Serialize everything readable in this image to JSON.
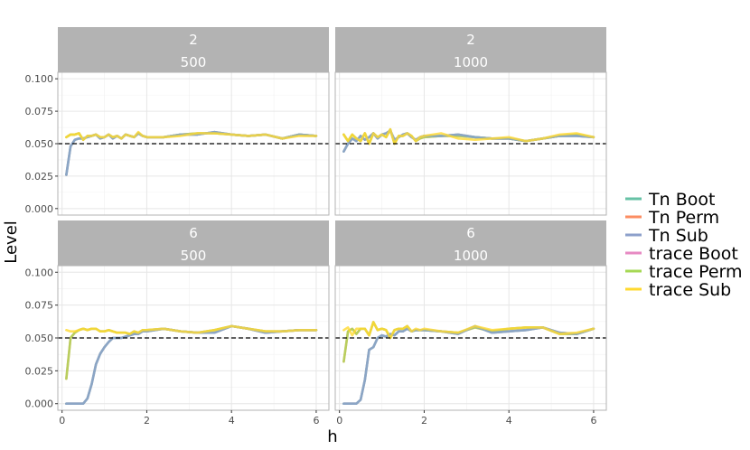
{
  "chart_data": {
    "type": "line",
    "xlabel": "h",
    "ylabel": "Level",
    "xlim": [
      -0.1,
      6.3
    ],
    "ylim": [
      -0.005,
      0.105
    ],
    "x_ticks": [
      0,
      2,
      4,
      6
    ],
    "y_ticks": [
      0.0,
      0.025,
      0.05,
      0.075,
      0.1
    ],
    "y_tick_labels": [
      "0.000",
      "0.025",
      "0.050",
      "0.075",
      "0.100"
    ],
    "x_tick_labels": [
      "0",
      "2",
      "4",
      "6"
    ],
    "reference_line": 0.05,
    "legend_position": "right",
    "series_names": [
      "Tn Boot",
      "Tn Perm",
      "Tn Sub",
      "trace Boot",
      "trace Perm",
      "trace Sub"
    ],
    "series_colors": [
      "#66c2a5",
      "#fc8d62",
      "#8da0cb",
      "#e78ac3",
      "#a6d854",
      "#ffd92f"
    ],
    "x": [
      0.1,
      0.2,
      0.3,
      0.4,
      0.5,
      0.6,
      0.7,
      0.8,
      0.9,
      1.0,
      1.1,
      1.2,
      1.3,
      1.4,
      1.5,
      1.6,
      1.7,
      1.8,
      1.9,
      2.0,
      2.4,
      2.8,
      3.2,
      3.6,
      4.0,
      4.4,
      4.8,
      5.2,
      5.6,
      6.0
    ],
    "panels": [
      {
        "strip_top": "2",
        "strip_bottom": "500",
        "series": [
          {
            "name": "Tn Boot",
            "values": [
              0.026,
              0.048,
              0.053,
              0.054,
              0.054,
              0.055,
              0.056,
              0.057,
              0.054,
              0.055,
              0.057,
              0.054,
              0.056,
              0.054,
              0.057,
              0.056,
              0.055,
              0.058,
              0.056,
              0.055,
              0.055,
              0.057,
              0.057,
              0.059,
              0.057,
              0.056,
              0.057,
              0.054,
              0.057,
              0.056
            ]
          },
          {
            "name": "Tn Perm",
            "values": [
              0.055,
              0.057,
              0.057,
              0.058,
              0.053,
              0.056,
              0.056,
              0.057,
              0.055,
              0.055,
              0.057,
              0.055,
              0.056,
              0.054,
              0.057,
              0.056,
              0.055,
              0.058,
              0.056,
              0.055,
              0.055,
              0.057,
              0.058,
              0.058,
              0.057,
              0.056,
              0.057,
              0.054,
              0.057,
              0.056
            ]
          },
          {
            "name": "Tn Sub",
            "values": [
              0.026,
              0.048,
              0.053,
              0.054,
              0.054,
              0.055,
              0.056,
              0.057,
              0.054,
              0.055,
              0.057,
              0.054,
              0.056,
              0.054,
              0.057,
              0.056,
              0.055,
              0.058,
              0.056,
              0.055,
              0.055,
              0.057,
              0.057,
              0.059,
              0.057,
              0.056,
              0.057,
              0.054,
              0.057,
              0.056
            ]
          },
          {
            "name": "trace Boot",
            "values": [
              0.026,
              0.048,
              0.053,
              0.054,
              0.054,
              0.055,
              0.056,
              0.057,
              0.054,
              0.055,
              0.057,
              0.054,
              0.056,
              0.054,
              0.057,
              0.056,
              0.055,
              0.058,
              0.056,
              0.055,
              0.055,
              0.057,
              0.057,
              0.059,
              0.057,
              0.056,
              0.057,
              0.054,
              0.057,
              0.056
            ]
          },
          {
            "name": "trace Perm",
            "values": [
              0.055,
              0.057,
              0.057,
              0.058,
              0.053,
              0.056,
              0.056,
              0.057,
              0.055,
              0.055,
              0.057,
              0.055,
              0.056,
              0.054,
              0.057,
              0.056,
              0.055,
              0.058,
              0.056,
              0.055,
              0.055,
              0.057,
              0.058,
              0.058,
              0.057,
              0.056,
              0.057,
              0.054,
              0.057,
              0.056
            ]
          },
          {
            "name": "trace Sub",
            "values": [
              0.055,
              0.057,
              0.057,
              0.058,
              0.053,
              0.056,
              0.056,
              0.057,
              0.055,
              0.055,
              0.057,
              0.055,
              0.056,
              0.054,
              0.057,
              0.056,
              0.055,
              0.059,
              0.056,
              0.055,
              0.055,
              0.056,
              0.058,
              0.058,
              0.057,
              0.056,
              0.057,
              0.054,
              0.056,
              0.056
            ]
          }
        ]
      },
      {
        "strip_top": "2",
        "strip_bottom": "1000",
        "series": [
          {
            "name": "Tn Boot",
            "values": [
              0.044,
              0.05,
              0.054,
              0.052,
              0.056,
              0.053,
              0.055,
              0.058,
              0.054,
              0.057,
              0.058,
              0.06,
              0.053,
              0.055,
              0.057,
              0.058,
              0.055,
              0.053,
              0.055,
              0.056,
              0.056,
              0.057,
              0.055,
              0.054,
              0.054,
              0.052,
              0.054,
              0.056,
              0.056,
              0.055
            ]
          },
          {
            "name": "Tn Perm",
            "values": [
              0.057,
              0.052,
              0.057,
              0.054,
              0.052,
              0.058,
              0.05,
              0.058,
              0.055,
              0.057,
              0.055,
              0.061,
              0.05,
              0.056,
              0.056,
              0.058,
              0.056,
              0.052,
              0.054,
              0.055,
              0.056,
              0.056,
              0.055,
              0.054,
              0.054,
              0.052,
              0.054,
              0.056,
              0.057,
              0.055
            ]
          },
          {
            "name": "Tn Sub",
            "values": [
              0.044,
              0.05,
              0.054,
              0.052,
              0.056,
              0.053,
              0.055,
              0.058,
              0.054,
              0.057,
              0.058,
              0.06,
              0.053,
              0.055,
              0.057,
              0.058,
              0.055,
              0.053,
              0.055,
              0.056,
              0.056,
              0.057,
              0.055,
              0.054,
              0.054,
              0.052,
              0.054,
              0.056,
              0.056,
              0.055
            ]
          },
          {
            "name": "trace Boot",
            "values": [
              0.044,
              0.05,
              0.054,
              0.052,
              0.056,
              0.053,
              0.055,
              0.058,
              0.054,
              0.057,
              0.058,
              0.06,
              0.053,
              0.055,
              0.057,
              0.058,
              0.055,
              0.053,
              0.055,
              0.056,
              0.056,
              0.057,
              0.055,
              0.054,
              0.054,
              0.052,
              0.054,
              0.056,
              0.056,
              0.055
            ]
          },
          {
            "name": "trace Perm",
            "values": [
              0.057,
              0.052,
              0.057,
              0.054,
              0.052,
              0.058,
              0.05,
              0.058,
              0.055,
              0.057,
              0.055,
              0.061,
              0.05,
              0.056,
              0.056,
              0.058,
              0.056,
              0.052,
              0.054,
              0.055,
              0.056,
              0.056,
              0.055,
              0.054,
              0.054,
              0.052,
              0.054,
              0.056,
              0.057,
              0.055
            ]
          },
          {
            "name": "trace Sub",
            "values": [
              0.057,
              0.052,
              0.057,
              0.054,
              0.052,
              0.058,
              0.05,
              0.058,
              0.055,
              0.057,
              0.055,
              0.061,
              0.05,
              0.056,
              0.056,
              0.058,
              0.056,
              0.052,
              0.055,
              0.056,
              0.058,
              0.054,
              0.053,
              0.054,
              0.055,
              0.052,
              0.054,
              0.057,
              0.058,
              0.055
            ]
          }
        ]
      },
      {
        "strip_top": "6",
        "strip_bottom": "500",
        "series": [
          {
            "name": "Tn Boot",
            "values": [
              0.0,
              0.0,
              0.0,
              0.0,
              0.0,
              0.004,
              0.015,
              0.03,
              0.038,
              0.043,
              0.047,
              0.05,
              0.05,
              0.05,
              0.051,
              0.052,
              0.053,
              0.053,
              0.055,
              0.055,
              0.057,
              0.055,
              0.054,
              0.054,
              0.059,
              0.057,
              0.054,
              0.055,
              0.056,
              0.056
            ]
          },
          {
            "name": "Tn Perm",
            "values": [
              0.019,
              0.05,
              0.054,
              0.056,
              0.057,
              0.056,
              0.057,
              0.057,
              0.055,
              0.055,
              0.056,
              0.055,
              0.054,
              0.054,
              0.054,
              0.053,
              0.055,
              0.054,
              0.056,
              0.056,
              0.057,
              0.055,
              0.054,
              0.056,
              0.059,
              0.057,
              0.055,
              0.055,
              0.056,
              0.056
            ]
          },
          {
            "name": "Tn Sub",
            "values": [
              0.0,
              0.0,
              0.0,
              0.0,
              0.0,
              0.004,
              0.015,
              0.03,
              0.038,
              0.043,
              0.047,
              0.05,
              0.05,
              0.05,
              0.051,
              0.052,
              0.053,
              0.053,
              0.055,
              0.055,
              0.057,
              0.055,
              0.054,
              0.054,
              0.059,
              0.057,
              0.054,
              0.055,
              0.056,
              0.056
            ]
          },
          {
            "name": "trace Boot",
            "values": [
              0.0,
              0.0,
              0.0,
              0.0,
              0.0,
              0.004,
              0.015,
              0.03,
              0.038,
              0.043,
              0.047,
              0.05,
              0.05,
              0.05,
              0.051,
              0.052,
              0.053,
              0.053,
              0.055,
              0.055,
              0.057,
              0.055,
              0.054,
              0.054,
              0.059,
              0.057,
              0.054,
              0.055,
              0.056,
              0.056
            ]
          },
          {
            "name": "trace Perm",
            "values": [
              0.019,
              0.05,
              0.054,
              0.056,
              0.057,
              0.056,
              0.057,
              0.057,
              0.055,
              0.055,
              0.056,
              0.055,
              0.054,
              0.054,
              0.054,
              0.053,
              0.055,
              0.054,
              0.056,
              0.056,
              0.057,
              0.055,
              0.054,
              0.056,
              0.059,
              0.057,
              0.055,
              0.055,
              0.056,
              0.056
            ]
          },
          {
            "name": "trace Sub",
            "values": [
              0.056,
              0.055,
              0.055,
              0.056,
              0.057,
              0.056,
              0.057,
              0.057,
              0.055,
              0.055,
              0.056,
              0.055,
              0.054,
              0.054,
              0.054,
              0.053,
              0.055,
              0.054,
              0.056,
              0.056,
              0.057,
              0.055,
              0.054,
              0.056,
              0.059,
              0.057,
              0.055,
              0.055,
              0.056,
              0.056
            ]
          }
        ]
      },
      {
        "strip_top": "6",
        "strip_bottom": "1000",
        "series": [
          {
            "name": "Tn Boot",
            "values": [
              0.0,
              0.0,
              0.0,
              0.0,
              0.003,
              0.018,
              0.041,
              0.043,
              0.05,
              0.052,
              0.051,
              0.053,
              0.052,
              0.055,
              0.055,
              0.057,
              0.055,
              0.056,
              0.056,
              0.056,
              0.055,
              0.053,
              0.059,
              0.054,
              0.055,
              0.056,
              0.058,
              0.054,
              0.053,
              0.057
            ]
          },
          {
            "name": "Tn Perm",
            "values": [
              0.032,
              0.055,
              0.057,
              0.053,
              0.057,
              0.057,
              0.052,
              0.062,
              0.056,
              0.057,
              0.056,
              0.05,
              0.056,
              0.057,
              0.057,
              0.059,
              0.055,
              0.056,
              0.056,
              0.056,
              0.055,
              0.054,
              0.058,
              0.055,
              0.057,
              0.058,
              0.058,
              0.053,
              0.053,
              0.057
            ]
          },
          {
            "name": "Tn Sub",
            "values": [
              0.0,
              0.0,
              0.0,
              0.0,
              0.003,
              0.018,
              0.041,
              0.043,
              0.05,
              0.052,
              0.051,
              0.053,
              0.052,
              0.055,
              0.055,
              0.057,
              0.055,
              0.056,
              0.056,
              0.056,
              0.055,
              0.053,
              0.059,
              0.054,
              0.055,
              0.056,
              0.058,
              0.054,
              0.053,
              0.057
            ]
          },
          {
            "name": "trace Boot",
            "values": [
              0.0,
              0.0,
              0.0,
              0.0,
              0.003,
              0.018,
              0.041,
              0.043,
              0.05,
              0.052,
              0.051,
              0.053,
              0.052,
              0.055,
              0.055,
              0.057,
              0.055,
              0.056,
              0.056,
              0.056,
              0.055,
              0.053,
              0.059,
              0.054,
              0.055,
              0.056,
              0.058,
              0.054,
              0.053,
              0.057
            ]
          },
          {
            "name": "trace Perm",
            "values": [
              0.032,
              0.055,
              0.057,
              0.053,
              0.057,
              0.057,
              0.052,
              0.062,
              0.056,
              0.057,
              0.056,
              0.05,
              0.056,
              0.057,
              0.057,
              0.059,
              0.055,
              0.056,
              0.056,
              0.056,
              0.055,
              0.054,
              0.058,
              0.055,
              0.057,
              0.058,
              0.058,
              0.053,
              0.053,
              0.057
            ]
          },
          {
            "name": "trace Sub",
            "values": [
              0.056,
              0.058,
              0.052,
              0.057,
              0.057,
              0.057,
              0.052,
              0.062,
              0.056,
              0.057,
              0.056,
              0.05,
              0.056,
              0.057,
              0.057,
              0.059,
              0.055,
              0.057,
              0.056,
              0.057,
              0.055,
              0.054,
              0.059,
              0.056,
              0.057,
              0.058,
              0.058,
              0.053,
              0.054,
              0.057
            ]
          }
        ]
      }
    ]
  }
}
